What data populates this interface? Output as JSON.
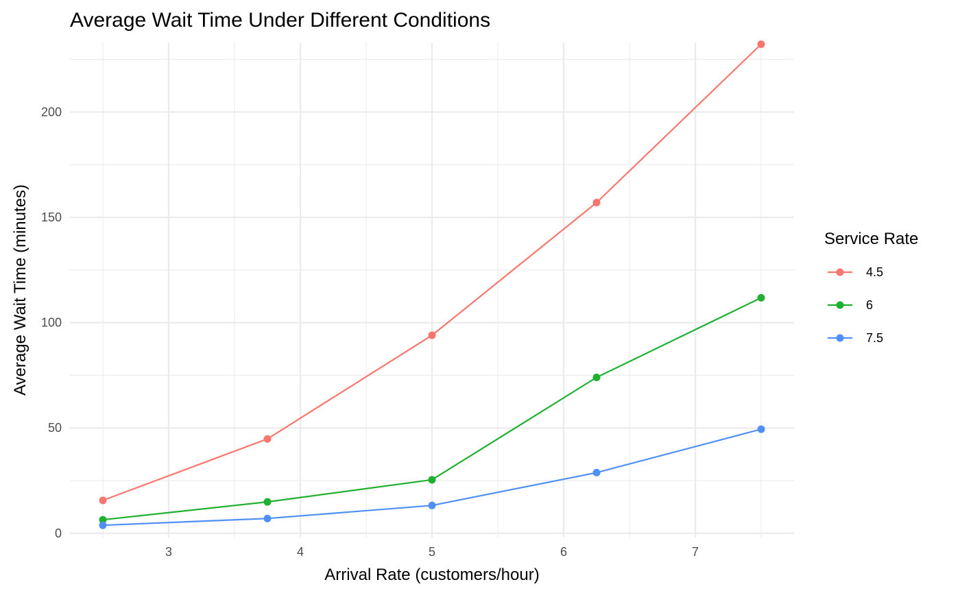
{
  "chart_data": {
    "type": "line",
    "title": "Average Wait Time Under Different Conditions",
    "xlabel": "Arrival Rate (customers/hour)",
    "ylabel": "Average Wait Time (minutes)",
    "xlim": [
      2.25,
      7.75
    ],
    "ylim": [
      -2,
      233
    ],
    "x_ticks": [
      3,
      4,
      5,
      6,
      7
    ],
    "y_ticks": [
      0,
      50,
      100,
      150,
      200
    ],
    "x_minor": [
      2.5,
      3.5,
      4.5,
      5.5,
      6.5,
      7.5
    ],
    "y_minor": [
      25,
      75,
      125,
      175,
      225
    ],
    "grid": true,
    "legend": {
      "title": "Service Rate",
      "placement": "right"
    },
    "x": [
      2.5,
      3.75,
      5,
      6.25,
      7.5
    ],
    "series": [
      {
        "name": "4.5",
        "color": "#F8766D",
        "values": [
          15.6,
          44.8,
          94.0,
          157.0,
          232.2
        ]
      },
      {
        "name": "6",
        "color": "#1FB030",
        "values": [
          6.4,
          14.9,
          25.4,
          74.0,
          111.8
        ]
      },
      {
        "name": "7.5",
        "color": "#4F8FF7",
        "values": [
          3.8,
          7.0,
          13.2,
          28.8,
          49.4
        ]
      }
    ]
  }
}
